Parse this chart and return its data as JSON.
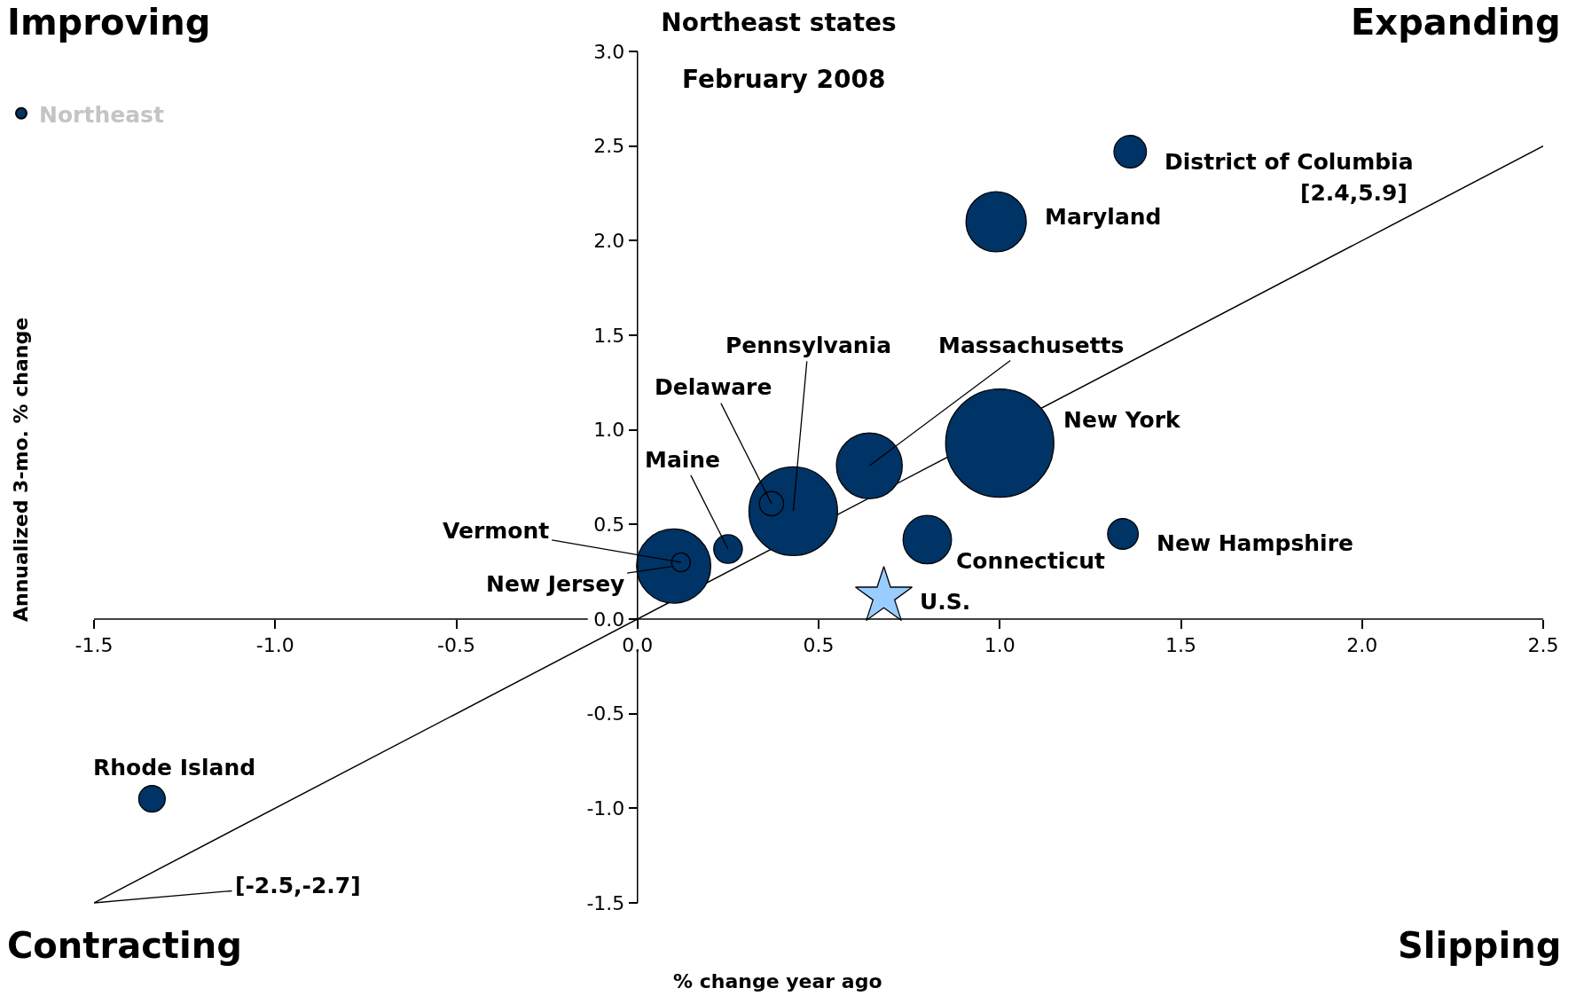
{
  "chart_data": {
    "type": "bubble",
    "title": "Northeast states",
    "subtitle": "February 2008",
    "xlabel": "% change year ago",
    "ylabel": "Annualized 3-mo. % change",
    "xlim": [
      -1.5,
      2.5
    ],
    "ylim": [
      -1.5,
      3
    ],
    "xticks": [
      -1.5,
      {
        "value": -1,
        "label": "-1.0"
      },
      -0.5,
      {
        "value": 0,
        "label": "0.0"
      },
      0.5,
      {
        "value": 1,
        "label": "1.0"
      },
      1.5,
      {
        "value": 2,
        "label": "2.0"
      },
      2.5
    ],
    "yticks": [
      -1.5,
      {
        "value": -1,
        "label": "-1.0"
      },
      -0.5,
      {
        "value": 0,
        "label": "0.0"
      },
      0.5,
      {
        "value": 1,
        "label": "1.0"
      },
      1.5,
      {
        "value": 2,
        "label": "2.0"
      },
      2.5,
      {
        "value": 3,
        "label": "3.0"
      }
    ],
    "marker": "circle",
    "legend": "top left",
    "series": [
      {
        "type": "line",
        "marker": "none",
        "color": "#000000",
        "x": [
          -1.5,
          2.5
        ],
        "values": [
          -1.5,
          2.5
        ]
      },
      {
        "name": "Northeast",
        "color": "#003366",
        "x": [
          1.36,
          0.99,
          1.0,
          0.64,
          0.43,
          0.37,
          0.1,
          0.12,
          0.25,
          0.8,
          1.34,
          -1.34
        ],
        "values": [
          2.47,
          2.1,
          0.93,
          0.81,
          0.57,
          0.61,
          0.28,
          0.3,
          0.37,
          0.42,
          0.45,
          -0.95
        ],
        "sizes": [
          0.09,
          0.31,
          1,
          0.37,
          0.67,
          0.05,
          0.47,
          0.03,
          0.07,
          0.2,
          0.08,
          0.06
        ]
      },
      {
        "type": "scatter",
        "marker": "star",
        "color": "#99ccff",
        "x": [
          0.68
        ],
        "values": [
          0.12
        ]
      }
    ],
    "annotations": [
      "Improving",
      "Expanding",
      "Contracting",
      "Slipping",
      "[2.4,5.9]",
      {
        "text": "District of Columbia",
        "x": 1.36,
        "y": 2.47
      },
      {
        "text": "Maryland",
        "x": 0.99,
        "y": 2.1
      },
      {
        "text": "New York",
        "x": 1.0,
        "y": 0.93
      },
      {
        "text": "Massachusetts",
        "x": 0.64,
        "y": 0.81
      },
      {
        "text": "Pennsylvania",
        "x": 0.43,
        "y": 0.57
      },
      {
        "text": "Delaware",
        "x": 0.37,
        "y": 0.61
      },
      {
        "text": "New Jersey",
        "x": 0.1,
        "y": 0.28
      },
      {
        "text": "Vermont",
        "x": 0.12,
        "y": 0.3
      },
      {
        "text": "Maine",
        "x": 0.25,
        "y": 0.37
      },
      {
        "text": "Connecticut",
        "x": 0.8,
        "y": 0.42
      },
      {
        "text": "New Hampshire",
        "x": 1.34,
        "y": 0.45
      },
      {
        "text": "Rhode Island",
        "x": -1.34,
        "y": -0.95
      },
      {
        "text": "U.S.",
        "x": 0.68,
        "y": 0.12
      },
      {
        "text": "[-2.5,-2.7]",
        "x": -1.5,
        "y": -1.5
      }
    ]
  }
}
